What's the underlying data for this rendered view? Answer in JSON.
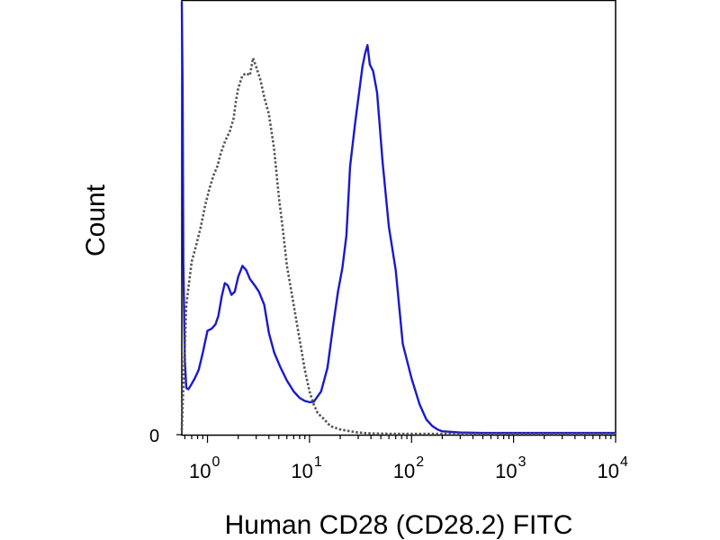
{
  "chart_data": {
    "type": "line",
    "title": "",
    "xlabel": "Human CD28 (CD28.2) FITC",
    "ylabel": "Count",
    "x_scale": "log",
    "xlim": [
      0.56,
      10000
    ],
    "ylim": [
      0,
      1
    ],
    "y_tick_labels": [
      "0"
    ],
    "x_ticks": [
      {
        "base": "10",
        "exp": "0",
        "value": 1
      },
      {
        "base": "10",
        "exp": "1",
        "value": 10
      },
      {
        "base": "10",
        "exp": "2",
        "value": 100
      },
      {
        "base": "10",
        "exp": "3",
        "value": 1000
      },
      {
        "base": "10",
        "exp": "4",
        "value": 10000
      }
    ],
    "grid": false,
    "legend": "none",
    "series": [
      {
        "style": "solid",
        "color": "#1a1acc",
        "x": [
          0.56,
          0.57,
          0.58,
          0.6,
          0.62,
          0.65,
          0.69,
          0.75,
          0.82,
          0.9,
          1.0,
          1.1,
          1.2,
          1.28,
          1.38,
          1.48,
          1.58,
          1.72,
          1.85,
          2.0,
          2.2,
          2.4,
          2.6,
          2.9,
          3.2,
          3.6,
          4.0,
          4.5,
          5.2,
          6.0,
          7.0,
          8.0,
          9.0,
          10.0,
          11.0,
          13.0,
          15.0,
          17.0,
          19.0,
          21.0,
          23.0,
          25.0,
          28.0,
          31.0,
          33.0,
          35.0,
          37.0,
          39.0,
          42.0,
          46.0,
          52.0,
          60.0,
          70.0,
          82.0,
          100.0,
          120.0,
          140.0,
          160.0,
          180.0,
          200.0,
          300.0,
          500.0,
          1000.0,
          3000.0,
          10000.0
        ],
        "y": [
          1.0,
          0.8,
          0.4,
          0.17,
          0.108,
          0.105,
          0.115,
          0.13,
          0.15,
          0.19,
          0.24,
          0.245,
          0.255,
          0.275,
          0.32,
          0.35,
          0.345,
          0.323,
          0.33,
          0.365,
          0.39,
          0.38,
          0.36,
          0.345,
          0.33,
          0.3,
          0.235,
          0.19,
          0.155,
          0.125,
          0.1,
          0.085,
          0.078,
          0.075,
          0.076,
          0.1,
          0.155,
          0.25,
          0.33,
          0.385,
          0.46,
          0.62,
          0.72,
          0.8,
          0.85,
          0.88,
          0.9,
          0.855,
          0.84,
          0.79,
          0.63,
          0.48,
          0.38,
          0.21,
          0.13,
          0.07,
          0.035,
          0.02,
          0.012,
          0.008,
          0.005,
          0.004,
          0.004,
          0.004,
          0.004
        ]
      },
      {
        "style": "dotted",
        "color": "#555555",
        "x": [
          0.56,
          0.62,
          0.7,
          0.78,
          0.86,
          0.95,
          1.05,
          1.15,
          1.25,
          1.35,
          1.5,
          1.65,
          1.8,
          1.9,
          2.0,
          2.2,
          2.4,
          2.6,
          2.8,
          3.0,
          3.3,
          3.6,
          4.0,
          4.5,
          5.0,
          5.5,
          6.0,
          7.0,
          8.0,
          9.0,
          10.0,
          11.0,
          12.0,
          14.0,
          16.0,
          20.0,
          25.0,
          30.0,
          40.0,
          60.0,
          100.0,
          200.0,
          1000.0,
          10000.0
        ],
        "y": [
          0.01,
          0.3,
          0.4,
          0.44,
          0.48,
          0.53,
          0.57,
          0.6,
          0.62,
          0.65,
          0.68,
          0.7,
          0.73,
          0.77,
          0.8,
          0.83,
          0.835,
          0.83,
          0.87,
          0.85,
          0.82,
          0.78,
          0.74,
          0.66,
          0.55,
          0.47,
          0.39,
          0.3,
          0.22,
          0.15,
          0.1,
          0.07,
          0.05,
          0.035,
          0.02,
          0.012,
          0.008,
          0.005,
          0.003,
          0.002,
          0.002,
          0.002,
          0.002,
          0.002
        ]
      }
    ]
  }
}
